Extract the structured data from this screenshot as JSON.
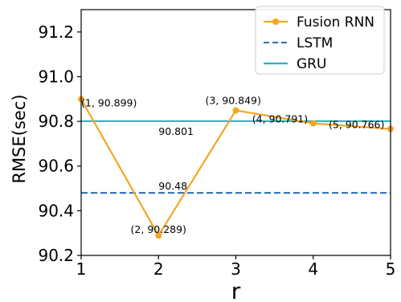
{
  "chart_data": {
    "type": "line",
    "xlabel": "r",
    "ylabel": "RMSE(sec)",
    "xlim": [
      1,
      5
    ],
    "ylim": [
      90.2,
      91.3
    ],
    "xticks": [
      "1",
      "2",
      "3",
      "4",
      "5"
    ],
    "yticks": [
      "90.2",
      "90.4",
      "90.6",
      "90.8",
      "91.0",
      "91.2"
    ],
    "grid": false,
    "legend_position": "top-right",
    "x": [
      1,
      2,
      3,
      4,
      5
    ],
    "series": [
      {
        "name": "Fusion RNN",
        "values": [
          90.899,
          90.289,
          90.849,
          90.791,
          90.766
        ],
        "color": "#f5a623",
        "style": "solid-marker",
        "point_labels": [
          "(1, 90.899)",
          "(2, 90.289)",
          "(3, 90.849)",
          "(4, 90.791)",
          "(5, 90.766)"
        ]
      },
      {
        "name": "LSTM",
        "value": 90.48,
        "color": "#3b78b8",
        "style": "dashed",
        "label": "90.48"
      },
      {
        "name": "GRU",
        "value": 90.801,
        "color": "#1bb8c4",
        "style": "solid",
        "label": "90.801"
      }
    ]
  }
}
